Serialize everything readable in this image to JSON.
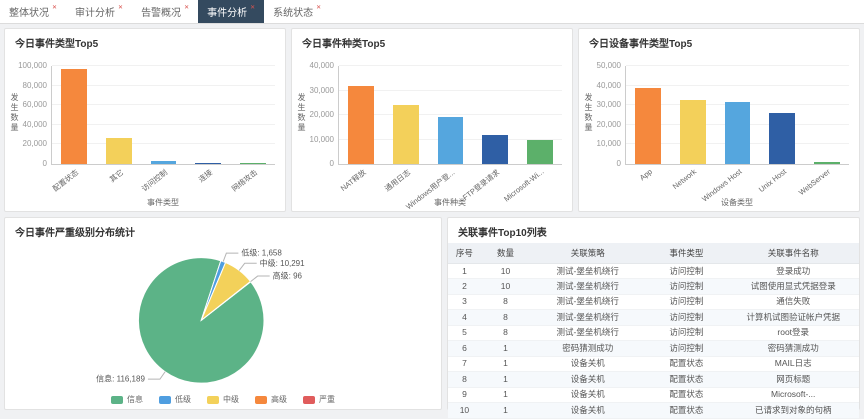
{
  "nav": {
    "tabs": [
      {
        "label": "整体状况",
        "active": false
      },
      {
        "label": "审计分析",
        "active": false
      },
      {
        "label": "告警概况",
        "active": false
      },
      {
        "label": "事件分析",
        "active": true
      },
      {
        "label": "系统状态",
        "active": false
      }
    ]
  },
  "chart_data": [
    {
      "type": "bar",
      "title": "今日事件类型Top5",
      "categories": [
        "配置状态",
        "其它",
        "访问控制",
        "连接",
        "网络攻击"
      ],
      "values": [
        97000,
        27000,
        3500,
        1500,
        800
      ],
      "colors": [
        "#f5883d",
        "#f3d05a",
        "#55a6de",
        "#2f5fa5",
        "#5cb06a"
      ],
      "xlabel": "事件类型",
      "ylabel": "发生数量",
      "ylim": [
        0,
        100000
      ],
      "ytick_step": 20000,
      "grid": true,
      "legend_position": "none"
    },
    {
      "type": "bar",
      "title": "今日事件种类Top5",
      "categories": [
        "NAT释放",
        "通用日志",
        "Windows用户登...",
        "FTP登录请求",
        "Microsoft-Wi..."
      ],
      "values": [
        32000,
        24000,
        19000,
        12000,
        10000
      ],
      "colors": [
        "#f5883d",
        "#f3d05a",
        "#55a6de",
        "#2f5fa5",
        "#5cb06a"
      ],
      "xlabel": "事件种类",
      "ylabel": "发生数量",
      "ylim": [
        0,
        40000
      ],
      "ytick_step": 10000,
      "grid": true,
      "legend_position": "none"
    },
    {
      "type": "bar",
      "title": "今日设备事件类型Top5",
      "categories": [
        "App",
        "Network",
        "Windows Host",
        "Unix Host",
        "WebServer"
      ],
      "values": [
        39000,
        32500,
        31500,
        26000,
        1200
      ],
      "colors": [
        "#f5883d",
        "#f3d05a",
        "#55a6de",
        "#2f5fa5",
        "#5cb06a"
      ],
      "xlabel": "设备类型",
      "ylabel": "发生数量",
      "ylim": [
        0,
        50000
      ],
      "ytick_step": 10000,
      "grid": true,
      "legend_position": "none"
    },
    {
      "type": "pie",
      "title": "今日事件严重级别分布统计",
      "labels": [
        "信息",
        "低级",
        "中级",
        "高级",
        "严重"
      ],
      "values": [
        116189,
        1658,
        10291,
        96,
        0
      ],
      "colors": [
        "#5cb387",
        "#4f9ee0",
        "#f3d15a",
        "#f5883d",
        "#e05c5c"
      ],
      "legend": [
        "信息",
        "低级",
        "中级",
        "高级",
        "严重"
      ],
      "legend_position": "bottom",
      "start_angle_deg": 52
    }
  ],
  "table": {
    "title": "关联事件Top10列表",
    "columns": [
      "序号",
      "数量",
      "关联策略",
      "事件类型",
      "关联事件名称"
    ],
    "rows": [
      [
        "1",
        "10",
        "测试-堡垒机绕行",
        "访问控制",
        "登录成功"
      ],
      [
        "2",
        "10",
        "测试-堡垒机绕行",
        "访问控制",
        "试图使用显式凭据登录"
      ],
      [
        "3",
        "8",
        "测试-堡垒机绕行",
        "访问控制",
        "通信失败"
      ],
      [
        "4",
        "8",
        "测试-堡垒机绕行",
        "访问控制",
        "计算机试图验证帐户凭据"
      ],
      [
        "5",
        "8",
        "测试-堡垒机绕行",
        "访问控制",
        "root登录"
      ],
      [
        "6",
        "1",
        "密码猜测成功",
        "访问控制",
        "密码猜测成功"
      ],
      [
        "7",
        "1",
        "设备关机",
        "配置状态",
        "MAIL日志"
      ],
      [
        "8",
        "1",
        "设备关机",
        "配置状态",
        "网页标题"
      ],
      [
        "9",
        "1",
        "设备关机",
        "配置状态",
        "Microsoft-..."
      ],
      [
        "10",
        "1",
        "设备关机",
        "配置状态",
        "已请求到对象的句柄"
      ]
    ]
  },
  "colors": {
    "active_tab_bg": "#344a5f",
    "close_icon": "#d9534f",
    "page_bg": "#f0f1f3"
  }
}
